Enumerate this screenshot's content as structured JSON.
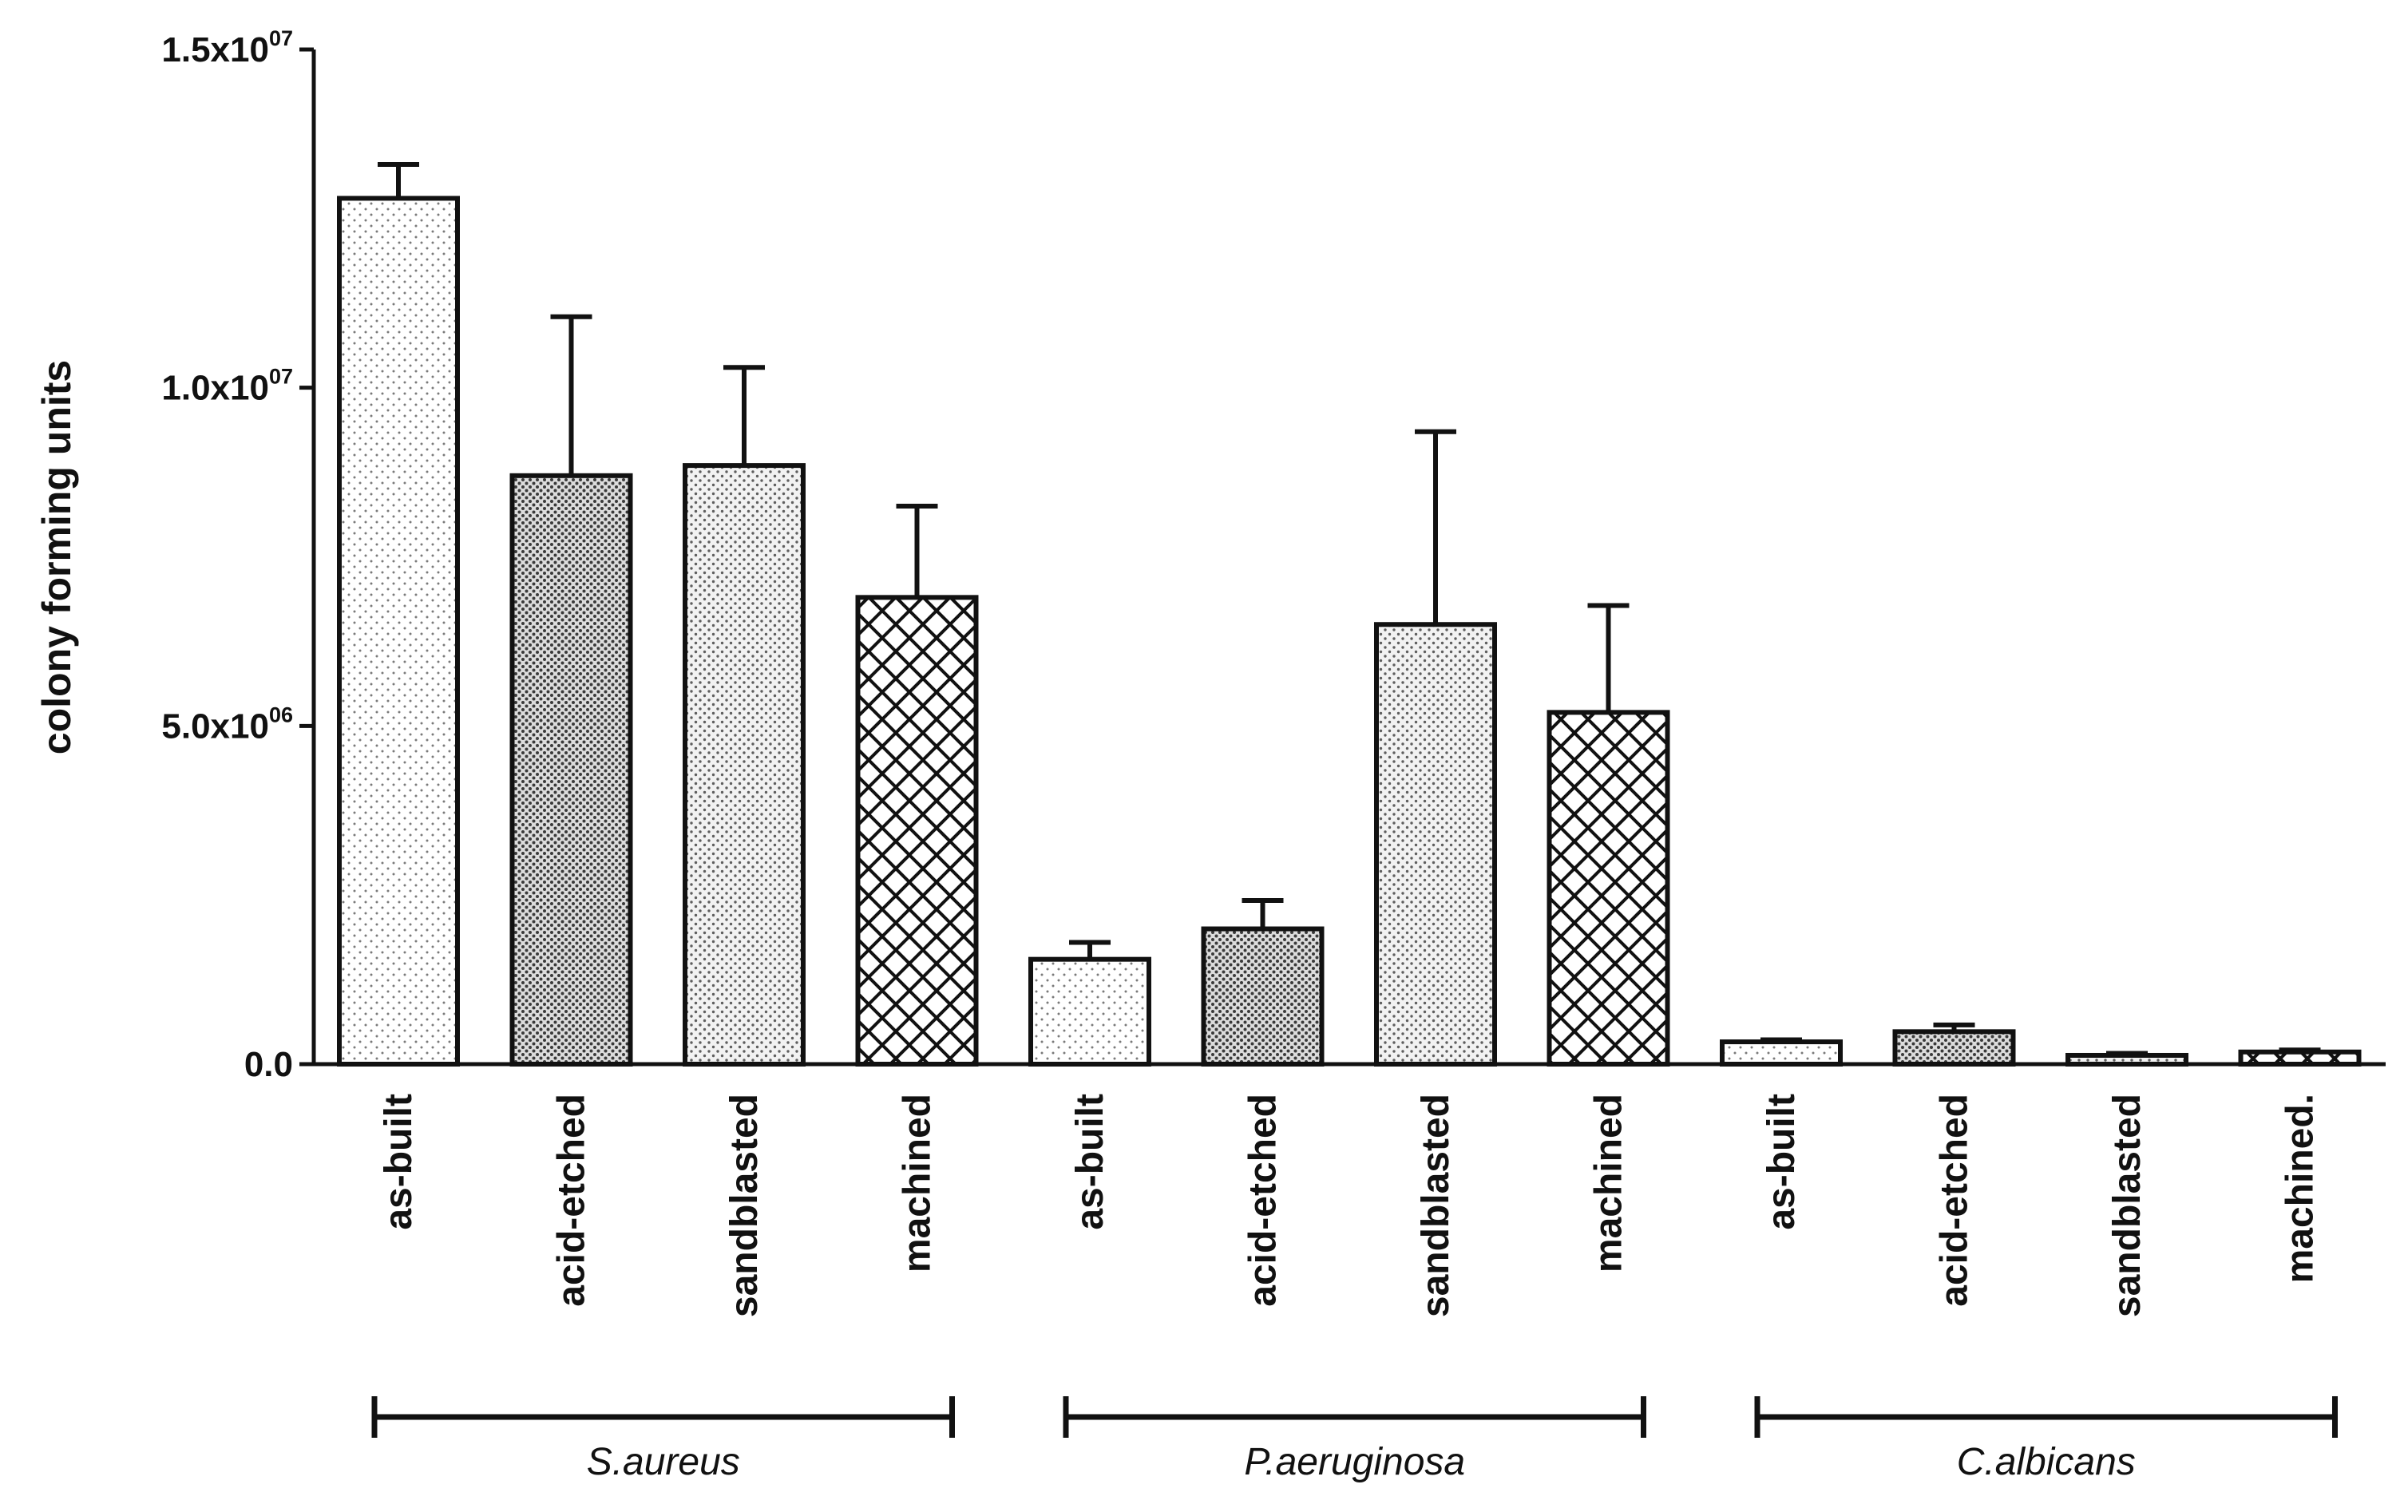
{
  "chart_data": {
    "type": "bar",
    "title": "",
    "xlabel": "",
    "ylabel": "colony forming units",
    "ylim": [
      0,
      15000000
    ],
    "yticks": [
      {
        "value": 0,
        "mantissa": "0.0",
        "exponent": ""
      },
      {
        "value": 5000000,
        "mantissa": "5.0x10",
        "exponent": "06"
      },
      {
        "value": 10000000,
        "mantissa": "1.0x10",
        "exponent": "07"
      },
      {
        "value": 15000000,
        "mantissa": "1.5x10",
        "exponent": "07"
      }
    ],
    "grid": false,
    "legend": "none",
    "groups": [
      {
        "name": "S.aureus",
        "bars": [
          {
            "label": "as-built",
            "value": 12800000,
            "error": 500000,
            "pattern": "dots-light"
          },
          {
            "label": "acid-etched",
            "value": 8700000,
            "error": 2350000,
            "pattern": "dots-dense"
          },
          {
            "label": "sandblasted",
            "value": 8850000,
            "error": 1450000,
            "pattern": "dots-medium"
          },
          {
            "label": "machined",
            "value": 6900000,
            "error": 1350000,
            "pattern": "crosshatch"
          }
        ]
      },
      {
        "name": "P.aeruginosa",
        "bars": [
          {
            "label": "as-built",
            "value": 1550000,
            "error": 250000,
            "pattern": "dots-light"
          },
          {
            "label": "acid-etched",
            "value": 2000000,
            "error": 420000,
            "pattern": "dots-dense"
          },
          {
            "label": "sandblasted",
            "value": 6500000,
            "error": 2850000,
            "pattern": "dots-medium"
          },
          {
            "label": "machined",
            "value": 5200000,
            "error": 1580000,
            "pattern": "crosshatch"
          }
        ]
      },
      {
        "name": "C.albicans",
        "bars": [
          {
            "label": "as-built",
            "value": 330000,
            "error": 30000,
            "pattern": "dots-light"
          },
          {
            "label": "acid-etched",
            "value": 480000,
            "error": 100000,
            "pattern": "dots-dense"
          },
          {
            "label": "sandblasted",
            "value": 130000,
            "error": 30000,
            "pattern": "dots-medium"
          },
          {
            "label": "machined.",
            "value": 180000,
            "error": 30000,
            "pattern": "crosshatch"
          }
        ]
      }
    ]
  },
  "colors": {
    "ink": "#111111",
    "background": "#ffffff"
  }
}
